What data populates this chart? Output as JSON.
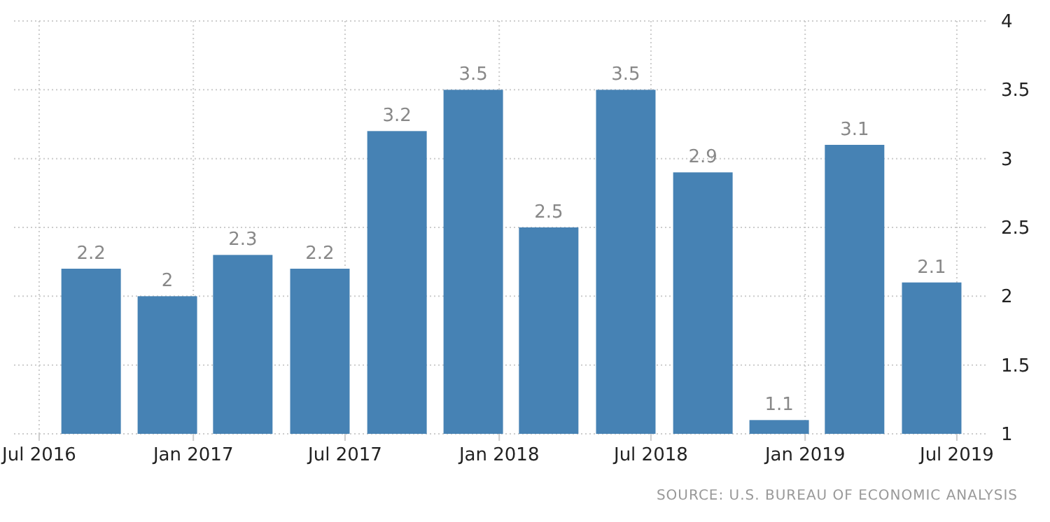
{
  "chart_data": {
    "type": "bar",
    "x": [
      "2016-09",
      "2016-12",
      "2017-03",
      "2017-06",
      "2017-09",
      "2017-12",
      "2018-03",
      "2018-06",
      "2018-09",
      "2018-12",
      "2019-03",
      "2019-06"
    ],
    "values": [
      2.2,
      2,
      2.3,
      2.2,
      3.2,
      3.5,
      2.5,
      3.5,
      2.9,
      1.1,
      3.1,
      2.1
    ],
    "color": "#4682b4",
    "data_labels": true,
    "xlim": [
      "2016-06-01",
      "2019-08-06"
    ],
    "xticks": [
      {
        "value": "2016-07",
        "label": "Jul 2016"
      },
      {
        "value": "2017-01",
        "label": "Jan 2017"
      },
      {
        "value": "2017-07",
        "label": "Jul 2017"
      },
      {
        "value": "2018-01",
        "label": "Jan 2018"
      },
      {
        "value": "2018-07",
        "label": "Jul 2018"
      },
      {
        "value": "2019-01",
        "label": "Jan 2019"
      },
      {
        "value": "2019-07",
        "label": "Jul 2019"
      }
    ],
    "ylim": [
      1,
      4
    ],
    "yticks": [
      1,
      1.5,
      2,
      2.5,
      3,
      3.5,
      4
    ],
    "grid": true,
    "annotations": [
      "SOURCE: U.S. BUREAU OF ECONOMIC ANALYSIS"
    ]
  }
}
